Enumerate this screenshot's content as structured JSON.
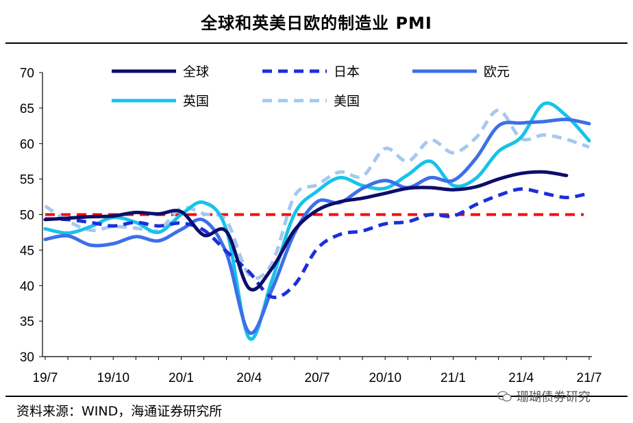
{
  "title": "全球和英美日欧的制造业 PMI",
  "source": "资料来源：WIND，海通证券研究所",
  "watermark": "珊瑚债券研究",
  "chart_data": {
    "type": "line",
    "title": "全球和英美日欧的制造业 PMI",
    "x": [
      "19/7",
      "19/8",
      "19/9",
      "19/10",
      "19/11",
      "19/12",
      "20/1",
      "20/2",
      "20/3",
      "20/4",
      "20/5",
      "20/6",
      "20/7",
      "20/8",
      "20/9",
      "20/10",
      "20/11",
      "20/12",
      "21/1",
      "21/2",
      "21/3",
      "21/4",
      "21/5",
      "21/6",
      "21/7"
    ],
    "x_tick_labels": [
      "19/7",
      "19/10",
      "20/1",
      "20/4",
      "20/7",
      "20/10",
      "21/1",
      "21/4",
      "21/7"
    ],
    "ylim": [
      30,
      70
    ],
    "y_ticks": [
      30,
      35,
      40,
      45,
      50,
      55,
      60,
      65,
      70
    ],
    "reference_line": {
      "value": 50,
      "color": "#ff0000",
      "style": "dashed"
    },
    "series": [
      {
        "name": "全球",
        "color": "#0d0d6b",
        "style": "solid",
        "values": [
          49.3,
          49.5,
          49.7,
          49.8,
          50.3,
          50.1,
          50.4,
          47.1,
          47.6,
          39.6,
          42.4,
          47.8,
          50.6,
          51.8,
          52.3,
          53.0,
          53.7,
          53.8,
          53.5,
          53.9,
          55.0,
          55.8,
          56.0,
          55.5,
          null
        ]
      },
      {
        "name": "日本",
        "color": "#1a2fdc",
        "style": "dashed",
        "values": [
          49.4,
          49.3,
          48.9,
          48.4,
          48.9,
          48.4,
          48.8,
          47.8,
          44.8,
          41.9,
          38.4,
          40.1,
          45.2,
          47.2,
          47.7,
          48.7,
          49.0,
          50.0,
          49.8,
          51.4,
          52.7,
          53.6,
          53.0,
          52.4,
          53.0
        ]
      },
      {
        "name": "欧元",
        "color": "#3d6fe8",
        "style": "solid",
        "values": [
          46.5,
          47.0,
          45.7,
          45.9,
          46.9,
          46.3,
          47.9,
          49.2,
          44.5,
          33.4,
          39.4,
          47.4,
          51.8,
          51.7,
          53.7,
          54.8,
          53.8,
          55.2,
          54.8,
          57.9,
          62.5,
          62.9,
          63.1,
          63.4,
          62.8
        ]
      },
      {
        "name": "英国",
        "color": "#17c3e8",
        "style": "solid",
        "values": [
          48.0,
          47.4,
          48.3,
          49.6,
          48.9,
          47.5,
          50.0,
          51.7,
          47.8,
          32.6,
          40.7,
          50.1,
          53.3,
          55.2,
          54.1,
          53.7,
          55.6,
          57.5,
          54.1,
          55.1,
          58.9,
          60.9,
          65.6,
          63.9,
          60.4
        ]
      },
      {
        "name": "美国",
        "color": "#a5c8f0",
        "style": "dashed",
        "values": [
          51.2,
          49.1,
          47.8,
          48.3,
          48.1,
          47.8,
          50.9,
          50.1,
          49.1,
          41.5,
          43.1,
          52.6,
          54.2,
          56.0,
          55.4,
          59.3,
          57.5,
          60.5,
          58.7,
          60.8,
          64.7,
          60.7,
          61.2,
          60.6,
          59.5
        ]
      }
    ],
    "legend": [
      "全球",
      "日本",
      "欧元",
      "英国",
      "美国"
    ]
  }
}
